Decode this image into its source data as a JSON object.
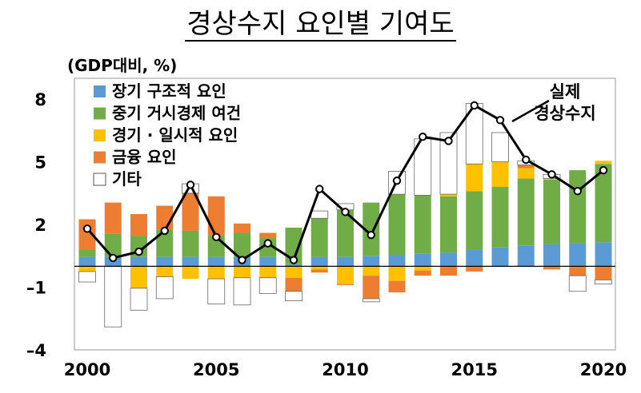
{
  "title": "경상수지 요인별 기여도",
  "unit_label": "(GDP대비, %)",
  "annotation": [
    "실제",
    "경상수지"
  ],
  "colors": {
    "장기 구조적 요인": "#5b9bd5",
    "중기 거시경제 여건": "#70ad47",
    "경기 · 일시적 요인": "#ffc000",
    "금융 요인": "#ed7d31",
    "기타": "#ffffff",
    "line": "#000000"
  },
  "chart_data": {
    "type": "bar",
    "stacked": true,
    "title": "경상수지 요인별 기여도",
    "ylabel": "(GDP대비, %)",
    "ylim": [
      -4,
      9
    ],
    "yticks": [
      8,
      5,
      2,
      -1,
      -4
    ],
    "x": [
      2000,
      2001,
      2002,
      2003,
      2004,
      2005,
      2006,
      2007,
      2008,
      2009,
      2010,
      2011,
      2012,
      2013,
      2014,
      2015,
      2016,
      2017,
      2018,
      2019,
      2020
    ],
    "xtick_labels": [
      "2000",
      "2005",
      "2010",
      "2015",
      "2020"
    ],
    "grid": false,
    "legend_position": "top-left",
    "series": [
      {
        "name": "장기 구조적 요인",
        "values": [
          0.45,
          0.45,
          0.45,
          0.45,
          0.45,
          0.45,
          0.45,
          0.45,
          0.1,
          0.45,
          0.45,
          0.5,
          0.55,
          0.6,
          0.65,
          0.8,
          0.9,
          1.0,
          1.05,
          1.1,
          1.15
        ]
      },
      {
        "name": "중기 거시경제 여건",
        "values": [
          0.35,
          1.1,
          1.0,
          1.3,
          1.25,
          1.05,
          1.15,
          0.9,
          1.75,
          1.85,
          2.25,
          2.55,
          2.9,
          2.8,
          2.7,
          2.8,
          2.9,
          3.2,
          3.1,
          3.5,
          3.75
        ]
      },
      {
        "name": "경기 · 일시적 요인",
        "values": [
          -0.25,
          0,
          -1.05,
          -0.5,
          -0.6,
          -0.6,
          -0.55,
          -0.55,
          -0.55,
          -0.15,
          -0.85,
          -0.45,
          -0.7,
          -0.2,
          0.1,
          1.3,
          1.2,
          0.5,
          0.05,
          0,
          0.15
        ]
      },
      {
        "name": "금융 요인",
        "values": [
          1.45,
          1.5,
          1.05,
          1.15,
          1.8,
          1.85,
          0.45,
          0.25,
          -0.65,
          -0.15,
          -0.05,
          -1.1,
          -0.55,
          -0.25,
          -0.45,
          -0.25,
          0,
          0.15,
          -0.15,
          -0.45,
          -0.65
        ]
      },
      {
        "name": "기타",
        "values": [
          -0.5,
          -2.9,
          -1.05,
          -1.05,
          0.45,
          -1.2,
          -1.3,
          -0.75,
          -0.45,
          0.35,
          0.3,
          -0.15,
          1.1,
          2.7,
          2.95,
          2.9,
          1.4,
          0.2,
          0.2,
          -0.75,
          -0.2
        ]
      },
      {
        "name": "실제 경상수지",
        "type": "line",
        "values": [
          1.8,
          0.4,
          0.7,
          1.7,
          3.9,
          1.4,
          0.3,
          1.1,
          0.3,
          3.7,
          2.6,
          1.5,
          4.1,
          6.2,
          6.0,
          7.7,
          7.0,
          5.1,
          4.4,
          3.6,
          4.6
        ]
      }
    ]
  }
}
